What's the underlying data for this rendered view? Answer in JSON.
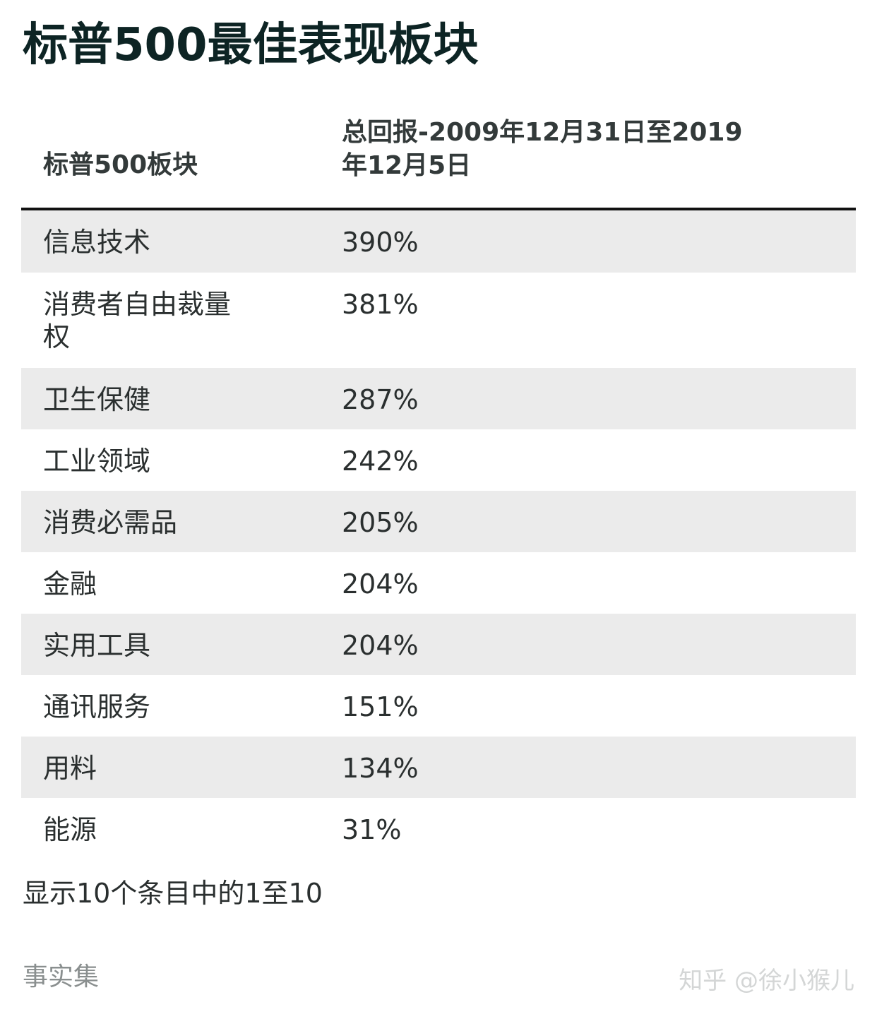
{
  "title": "标普500最佳表现板块",
  "table": {
    "headers": {
      "sector": "标普500板块",
      "return_line1": "总回报-2009年12月31日至2019",
      "return_line2": "年12月5日"
    },
    "rows": [
      {
        "sector": "信息技术",
        "return": "390%"
      },
      {
        "sector": "消费者自由裁量权",
        "return": "381%"
      },
      {
        "sector": "卫生保健",
        "return": "287%"
      },
      {
        "sector": "工业领域",
        "return": "242%"
      },
      {
        "sector": "消费必需品",
        "return": "205%"
      },
      {
        "sector": "金融",
        "return": "204%"
      },
      {
        "sector": "实用工具",
        "return": "204%"
      },
      {
        "sector": "通讯服务",
        "return": "151%"
      },
      {
        "sector": "用料",
        "return": "134%"
      },
      {
        "sector": "能源",
        "return": "31%"
      }
    ]
  },
  "table_info": "显示10个条目中的1至10",
  "source": "事实集",
  "watermark": "知乎 @徐小猴儿"
}
